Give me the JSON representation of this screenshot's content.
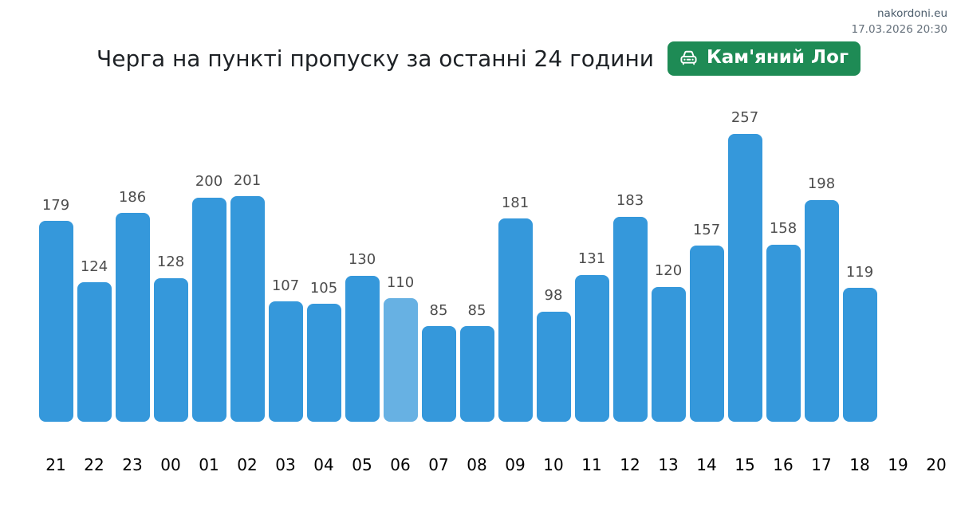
{
  "meta": {
    "site": "nakordoni.eu",
    "timestamp": "17.03.2026 20:30"
  },
  "header": {
    "title": "Черга на пункті пропуску за останні 24 години",
    "badge": {
      "label": "Кам'яний Лог",
      "icon": "car-front-icon",
      "bg_color": "#1e8b55",
      "text_color": "#ffffff"
    }
  },
  "chart_data": {
    "type": "bar",
    "title": "Черга на пункті пропуску за останні 24 години",
    "xlabel": "",
    "ylabel": "",
    "categories": [
      "21",
      "22",
      "23",
      "00",
      "01",
      "02",
      "03",
      "04",
      "05",
      "06",
      "07",
      "08",
      "09",
      "10",
      "11",
      "12",
      "13",
      "14",
      "15",
      "16",
      "17",
      "18",
      "19",
      "20"
    ],
    "values": [
      179,
      124,
      186,
      128,
      200,
      201,
      107,
      105,
      130,
      110,
      85,
      85,
      181,
      98,
      131,
      183,
      120,
      157,
      257,
      158,
      198,
      119,
      null,
      null
    ],
    "ylim": [
      0,
      270
    ],
    "grid": false,
    "legend": false,
    "value_labels": true,
    "bar_color": "#3598db",
    "highlight_color": "#67b1e3",
    "highlight_index": 9,
    "value_label_color": "#4d4d4d",
    "tick_label_color": "#000000"
  }
}
